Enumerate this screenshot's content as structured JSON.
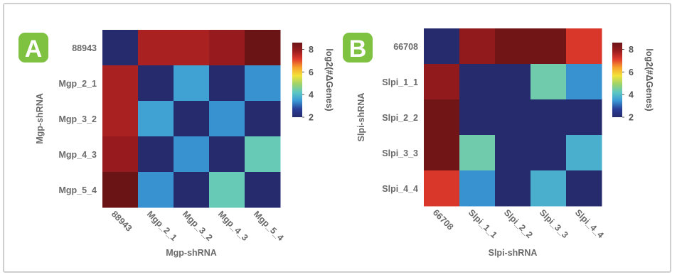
{
  "chart_data": [
    {
      "type": "heatmap",
      "panel_label": "A",
      "row_categories": [
        "88943",
        "Mgp_2_1",
        "Mgp_3_2",
        "Mgp_4_3",
        "Mgp_5_4"
      ],
      "col_categories": [
        "88943",
        "Mgp_2_1",
        "Mgp_3_2",
        "Mgp_4_3",
        "Mgp_5_4"
      ],
      "values": [
        [
          2.0,
          7.7,
          7.7,
          7.9,
          8.6
        ],
        [
          7.7,
          2.0,
          3.6,
          2.0,
          3.4
        ],
        [
          7.7,
          3.6,
          2.0,
          3.4,
          2.0
        ],
        [
          7.9,
          2.0,
          3.4,
          2.0,
          4.3
        ],
        [
          8.6,
          3.4,
          2.0,
          4.3,
          2.0
        ]
      ],
      "xlabel": "Mgp-shRNA",
      "ylabel": "Mgp-shRNA",
      "colorbar": {
        "label": "log2(#ΔGenes)",
        "ticks": [
          "2",
          "4",
          "6",
          "8"
        ],
        "range": [
          2,
          8.6
        ]
      }
    },
    {
      "type": "heatmap",
      "panel_label": "B",
      "row_categories": [
        "66708",
        "Slpi_1_1",
        "Slpi_2_2",
        "Slpi_3_3",
        "Slpi_4_4"
      ],
      "col_categories": [
        "66708",
        "Slpi_1_1",
        "Slpi_2_2",
        "Slpi_3_3",
        "Slpi_4_4"
      ],
      "values": [
        [
          2.0,
          8.0,
          8.5,
          8.5,
          7.2
        ],
        [
          8.0,
          2.0,
          2.0,
          4.4,
          3.4
        ],
        [
          8.5,
          2.0,
          2.0,
          2.0,
          2.0
        ],
        [
          8.5,
          4.4,
          2.0,
          2.0,
          3.8
        ],
        [
          7.2,
          3.4,
          2.0,
          3.8,
          2.0
        ]
      ],
      "xlabel": "Slpi-shRNA",
      "ylabel": "Slpi-shRNA",
      "colorbar": {
        "label": "log2(#ΔGenes)",
        "ticks": [
          "2",
          "4",
          "6",
          "8"
        ],
        "range": [
          2,
          8.6
        ]
      }
    }
  ],
  "colors": {
    "panel_badge": "#7fc241",
    "colormap": [
      "#262b6e",
      "#2a3f96",
      "#3a9ad6",
      "#5dc8c3",
      "#9ed36a",
      "#f2e33a",
      "#f7a22c",
      "#e03a2c",
      "#991b1e",
      "#6b1416"
    ]
  }
}
